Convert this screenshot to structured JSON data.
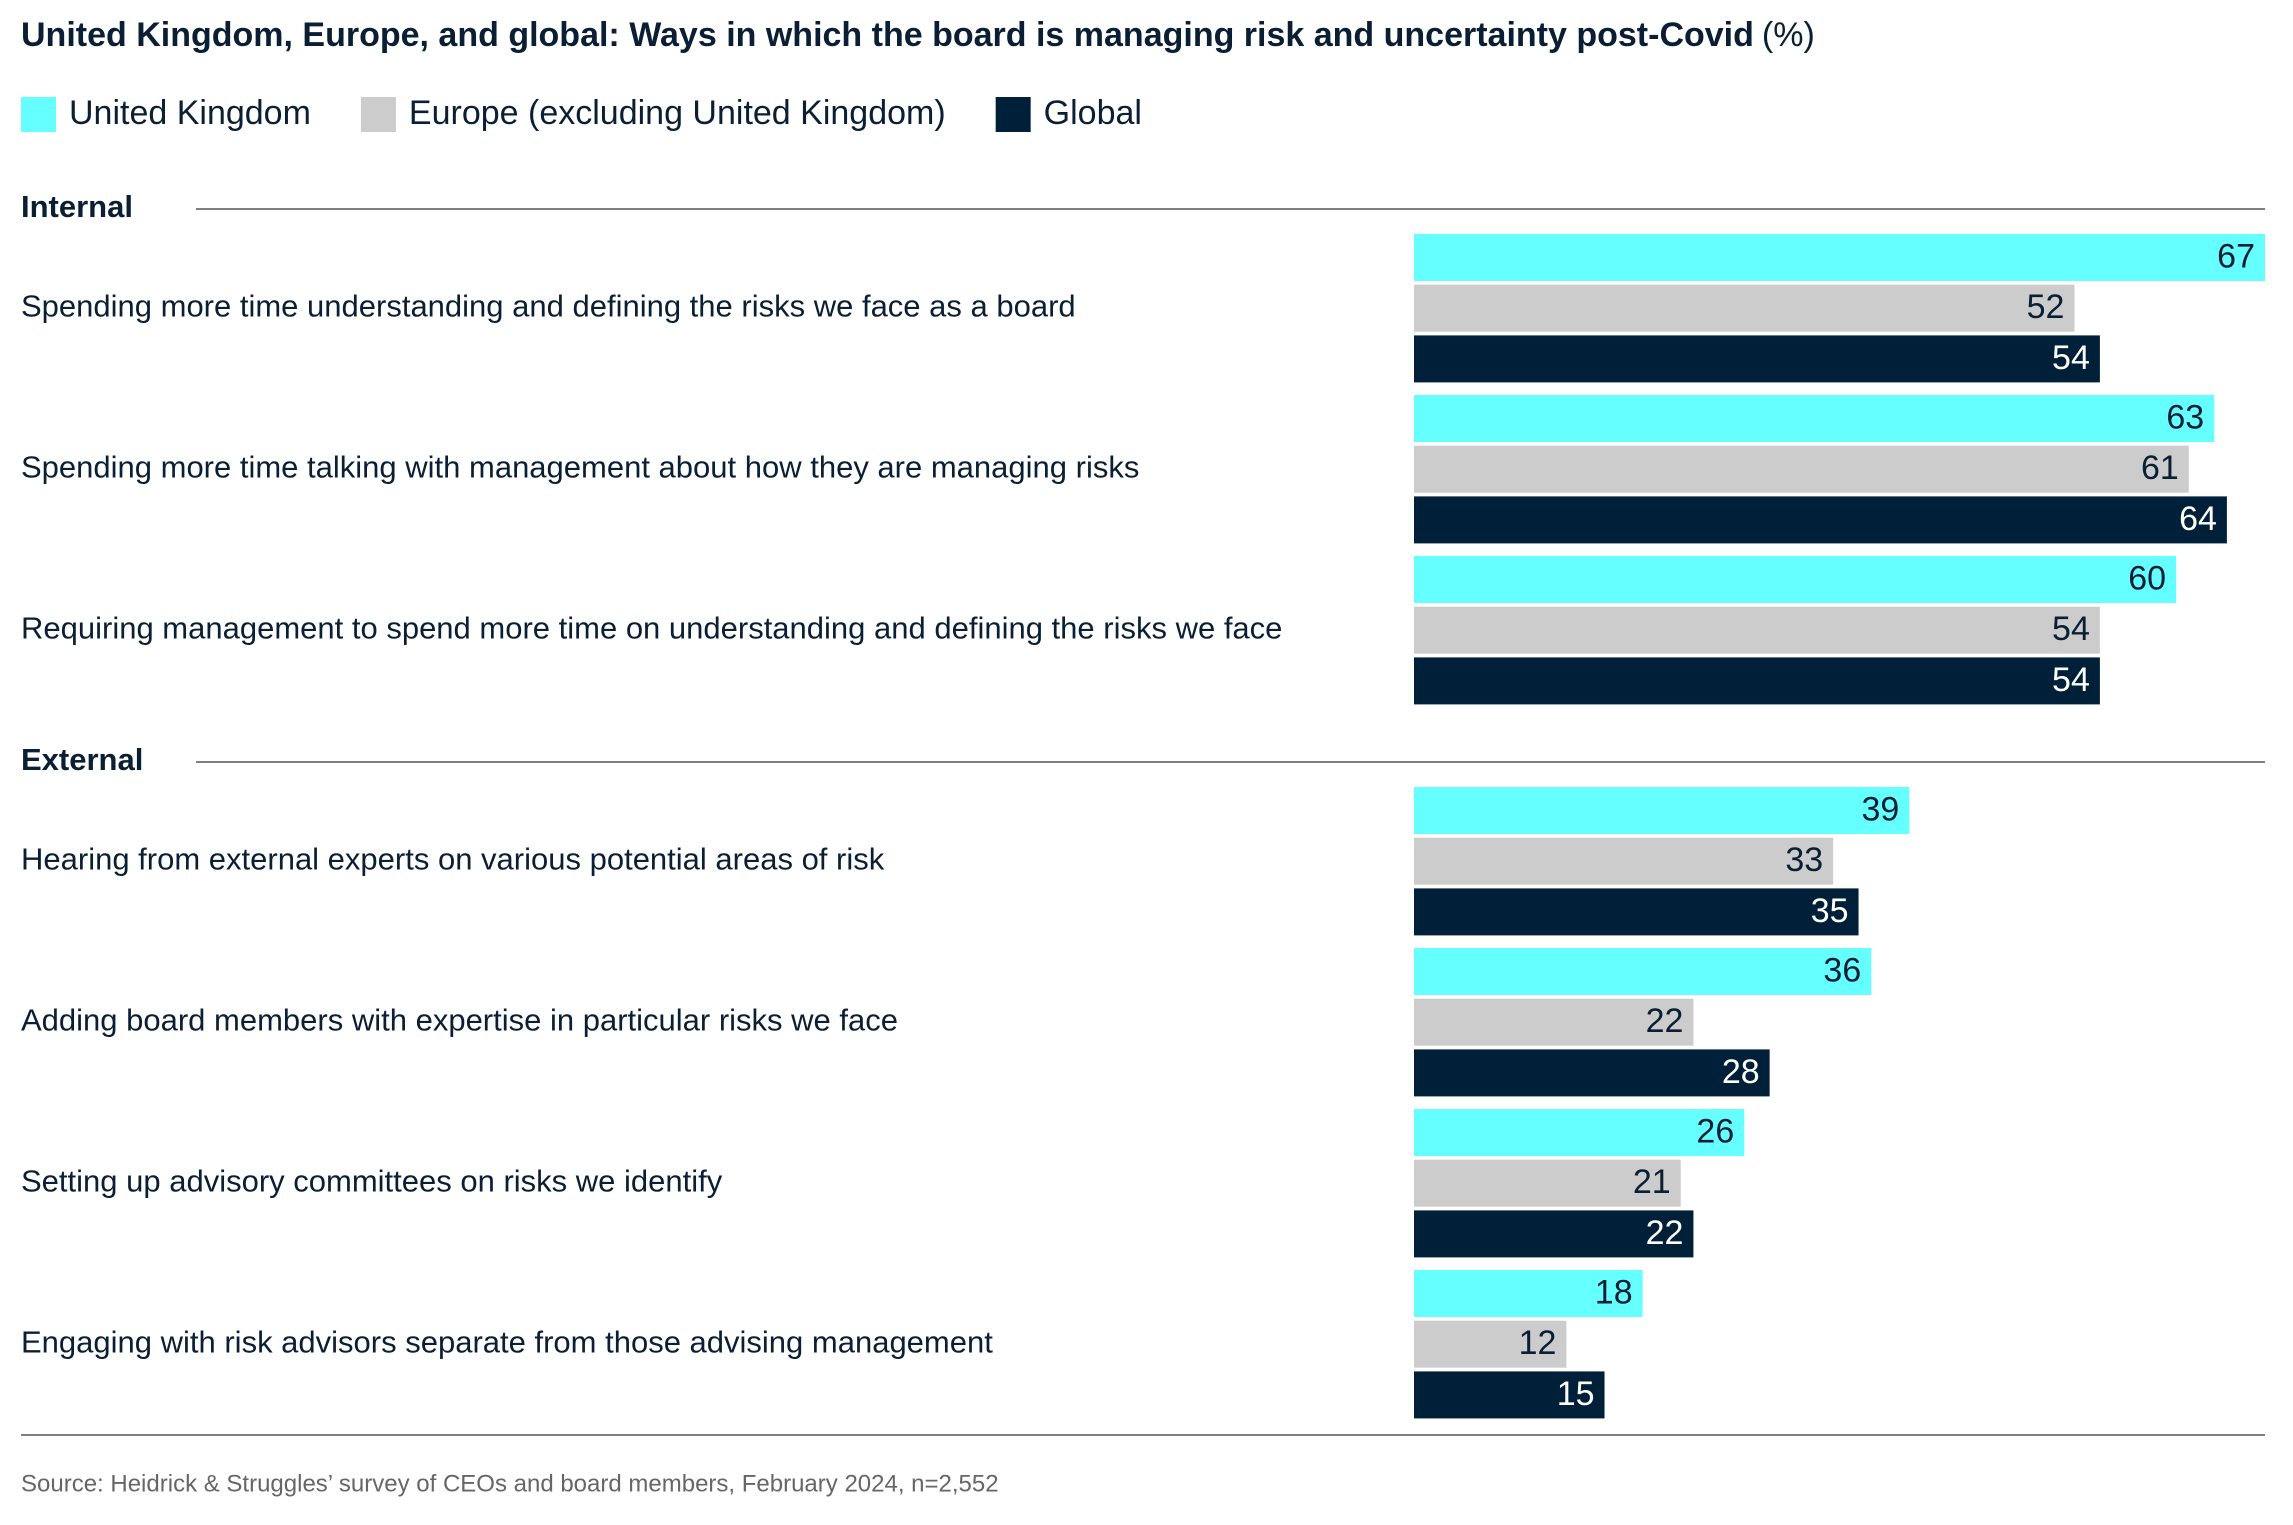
{
  "chart_data": {
    "type": "grouped-hbar",
    "title": "United Kingdom, Europe, and global: Ways in which the board is managing risk and uncertainty post-Covid",
    "title_unit": "(%)",
    "series": [
      {
        "name": "United Kingdom",
        "color": "#66ffff"
      },
      {
        "name": "Europe (excluding United Kingdom)",
        "color": "#cccccc"
      },
      {
        "name": "Global",
        "color": "#002039"
      }
    ],
    "groups": [
      {
        "label": "Internal",
        "categories": [
          "Spending more time understanding and defining the risks we face as a board",
          "Spending more time talking with management about how they are managing risks",
          "Requiring management to spend more time on understanding and defining the risks we face"
        ],
        "values": [
          [
            67,
            63,
            60
          ],
          [
            52,
            61,
            54
          ],
          [
            54,
            64,
            54
          ]
        ]
      },
      {
        "label": "External",
        "categories": [
          "Hearing from external experts on various potential areas of risk",
          "Adding board members with expertise in particular risks we face",
          "Setting up advisory committees on risks we identify",
          "Engaging with risk advisors separate from those advising management"
        ],
        "values": [
          [
            39,
            36,
            26,
            18
          ],
          [
            33,
            22,
            21,
            12
          ],
          [
            35,
            28,
            22,
            15
          ]
        ]
      }
    ],
    "source": "Source: Heidrick & Struggles’ survey of CEOs and board members, February 2024, n=2,552"
  }
}
